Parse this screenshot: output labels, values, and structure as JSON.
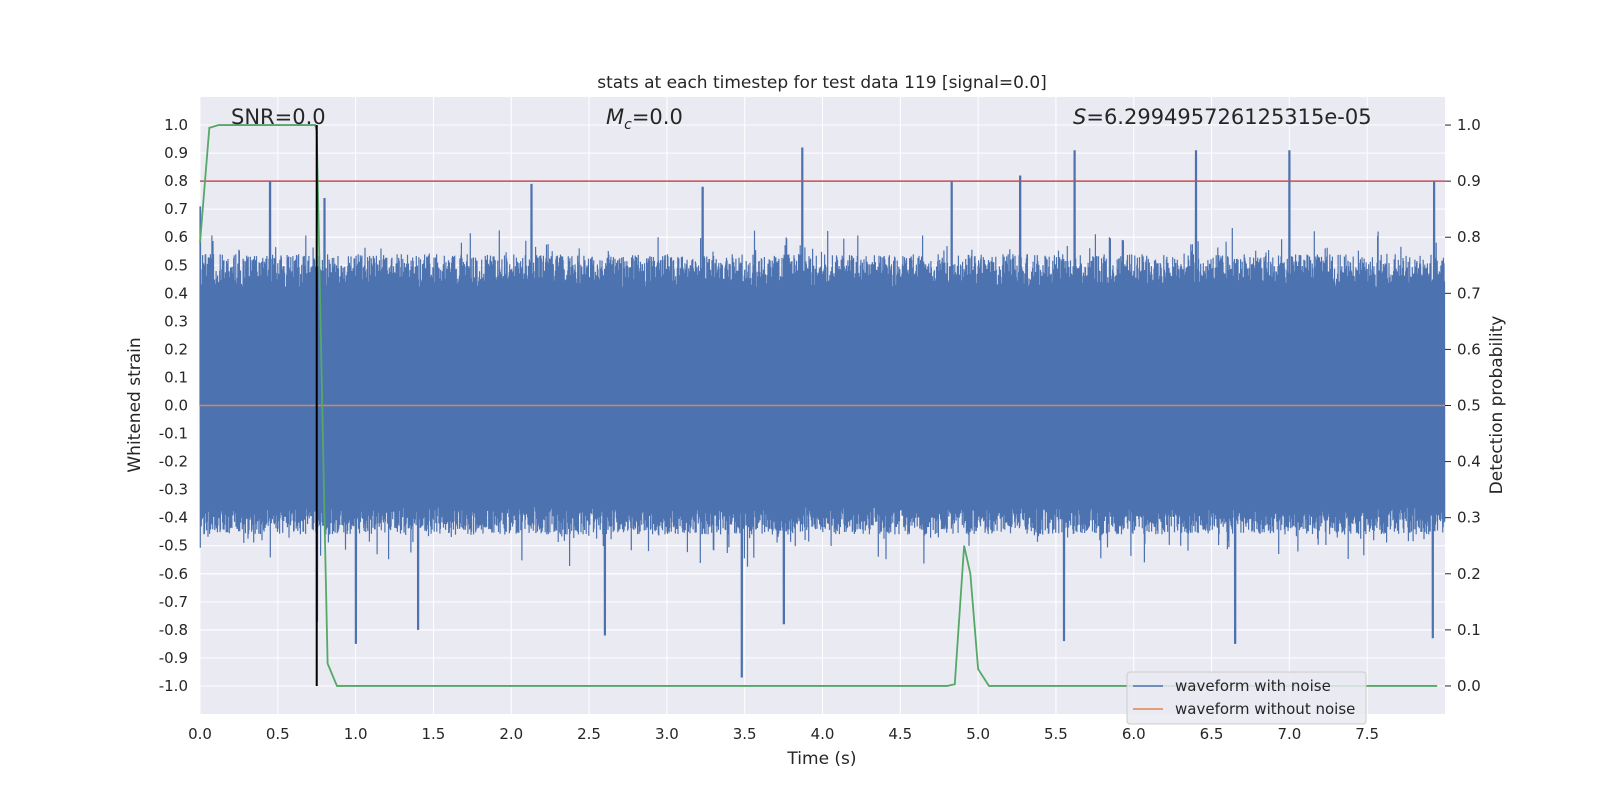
{
  "chart_data": {
    "type": "line",
    "title": "stats at each timestep for test data 119 [signal=0.0]",
    "xlabel": "Time (s)",
    "ylabel": "Whitened strain",
    "y2label": "Detection probability",
    "xlim": [
      0.0,
      8.0
    ],
    "ylim": [
      -1.1,
      1.1
    ],
    "y2lim": [
      -0.05,
      1.05
    ],
    "grid": true,
    "x_ticks": [
      0.0,
      0.5,
      1.0,
      1.5,
      2.0,
      2.5,
      3.0,
      3.5,
      4.0,
      4.5,
      5.0,
      5.5,
      6.0,
      6.5,
      7.0,
      7.5
    ],
    "x_tick_labels": [
      "0.0",
      "0.5",
      "1.0",
      "1.5",
      "2.0",
      "2.5",
      "3.0",
      "3.5",
      "4.0",
      "4.5",
      "5.0",
      "5.5",
      "6.0",
      "6.5",
      "7.0",
      "7.5"
    ],
    "y_ticks": [
      1.0,
      0.9,
      0.8,
      0.7,
      0.6,
      0.5,
      0.4,
      0.3,
      0.2,
      0.1,
      0.0,
      -0.1,
      -0.2,
      -0.3,
      -0.4,
      -0.5,
      -0.6,
      -0.7,
      -0.8,
      -0.9,
      -1.0
    ],
    "y_tick_labels": [
      "1.0",
      "0.9",
      "0.8",
      "0.7",
      "0.6",
      "0.5",
      "0.4",
      "0.3",
      "0.2",
      "0.1",
      "0.0",
      "-0.1",
      "-0.2",
      "-0.3",
      "-0.4",
      "-0.5",
      "-0.6",
      "-0.7",
      "-0.8",
      "-0.9",
      "-1.0"
    ],
    "y2_ticks": [
      1.0,
      0.9,
      0.8,
      0.7,
      0.6,
      0.5,
      0.4,
      0.3,
      0.2,
      0.1,
      0.0
    ],
    "y2_tick_labels": [
      "1.0",
      "0.9",
      "0.8",
      "0.7",
      "0.6",
      "0.5",
      "0.4",
      "0.3",
      "0.2",
      "0.1",
      "0.0"
    ],
    "annotations": {
      "snr": "SNR=0.0",
      "mc_symbol": "M",
      "mc_sub": "c",
      "mc_value": "=0.0",
      "s_symbol": "S",
      "s_value": "=6.299495726125315e-05"
    },
    "legend": {
      "placement": "lower-right",
      "entries": [
        "waveform with noise",
        "waveform without noise"
      ]
    },
    "series": [
      {
        "name": "waveform with noise",
        "axis": "left",
        "color": "#4c72b0",
        "description": "noise band, typical range about -0.45 to 0.55",
        "peaks": [
          {
            "x": 0.0,
            "y": 0.71
          },
          {
            "x": 0.45,
            "y": 0.8
          },
          {
            "x": 0.8,
            "y": 0.74
          },
          {
            "x": 2.13,
            "y": 0.79
          },
          {
            "x": 3.23,
            "y": 0.78
          },
          {
            "x": 3.87,
            "y": 0.92
          },
          {
            "x": 4.83,
            "y": 0.8
          },
          {
            "x": 5.27,
            "y": 0.82
          },
          {
            "x": 5.62,
            "y": 0.91
          },
          {
            "x": 6.4,
            "y": 0.91
          },
          {
            "x": 7.0,
            "y": 0.91
          },
          {
            "x": 7.93,
            "y": 0.8
          }
        ],
        "troughs": [
          {
            "x": 0.75,
            "y": -0.77
          },
          {
            "x": 1.0,
            "y": -0.85
          },
          {
            "x": 1.4,
            "y": -0.8
          },
          {
            "x": 2.6,
            "y": -0.82
          },
          {
            "x": 3.48,
            "y": -0.97
          },
          {
            "x": 3.75,
            "y": -0.78
          },
          {
            "x": 5.55,
            "y": -0.84
          },
          {
            "x": 6.65,
            "y": -0.85
          },
          {
            "x": 7.92,
            "y": -0.83
          }
        ]
      },
      {
        "name": "waveform without noise",
        "axis": "left",
        "color": "#dd8452",
        "x": [
          0.0,
          8.0
        ],
        "y": [
          0.0,
          0.0
        ]
      },
      {
        "name": "detection probability",
        "axis": "right",
        "color": "#55a868",
        "x": [
          0.0,
          0.06,
          0.12,
          0.5,
          0.74,
          0.75,
          0.8,
          0.82,
          0.88,
          1.0,
          4.5,
          4.8,
          4.85,
          4.91,
          4.95,
          5.0,
          5.07,
          7.95
        ],
        "y": [
          0.79,
          0.995,
          1.0,
          1.0,
          1.0,
          0.99,
          0.3,
          0.04,
          0.0,
          0.0,
          0.0,
          0.0,
          0.003,
          0.25,
          0.2,
          0.03,
          0.0,
          0.0
        ]
      }
    ],
    "reference_lines": [
      {
        "name": "threshold",
        "axis": "right",
        "orientation": "horizontal",
        "value": 0.9,
        "color": "#c44e52"
      },
      {
        "name": "marker",
        "orientation": "vertical",
        "x": 0.75,
        "y_from": 0.0,
        "y_to": 1.0,
        "axis": "right",
        "color": "#000000"
      }
    ]
  }
}
